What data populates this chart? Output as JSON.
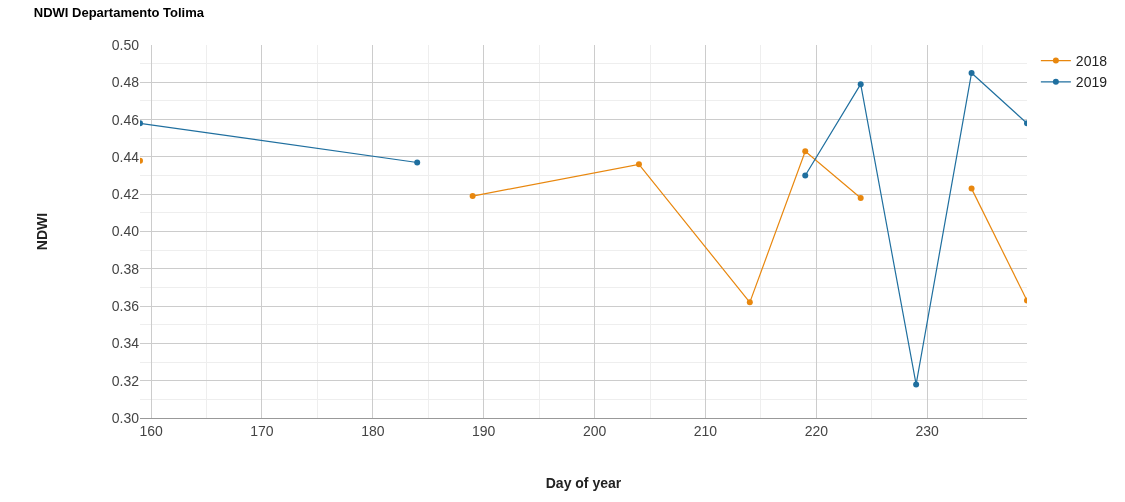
{
  "chart_data": {
    "type": "line",
    "title": "NDWI Departamento Tolima",
    "xlabel": "Day of year",
    "ylabel": "NDWI",
    "xlim": [
      159,
      239
    ],
    "xticks": [
      160,
      170,
      180,
      190,
      200,
      210,
      220,
      230
    ],
    "ylim": [
      0.3,
      0.5
    ],
    "yticks": [
      {
        "value": 0.3,
        "label": "0.30"
      },
      0.32,
      0.34,
      0.36,
      0.38,
      {
        "value": 0.4,
        "label": "0.40"
      },
      0.42,
      0.44,
      0.46,
      0.48,
      {
        "value": 0.5,
        "label": "0.50"
      }
    ],
    "grid": true,
    "legend": "top right",
    "marker": "circle",
    "line_style": "solid",
    "series": [
      {
        "name": "2018",
        "color": "#e8870e",
        "x": [
          159,
          184,
          189,
          204,
          214,
          219,
          224,
          229,
          234,
          239
        ],
        "values": [
          0.438,
          null,
          0.419,
          0.436,
          0.362,
          0.443,
          0.418,
          null,
          0.423,
          0.363
        ]
      },
      {
        "name": "2019",
        "color": "#1f6f9f",
        "x": [
          159,
          184,
          204,
          219,
          224,
          229,
          234,
          239
        ],
        "values": [
          0.458,
          0.437,
          null,
          0.43,
          0.479,
          0.318,
          0.485,
          0.458
        ]
      }
    ]
  }
}
